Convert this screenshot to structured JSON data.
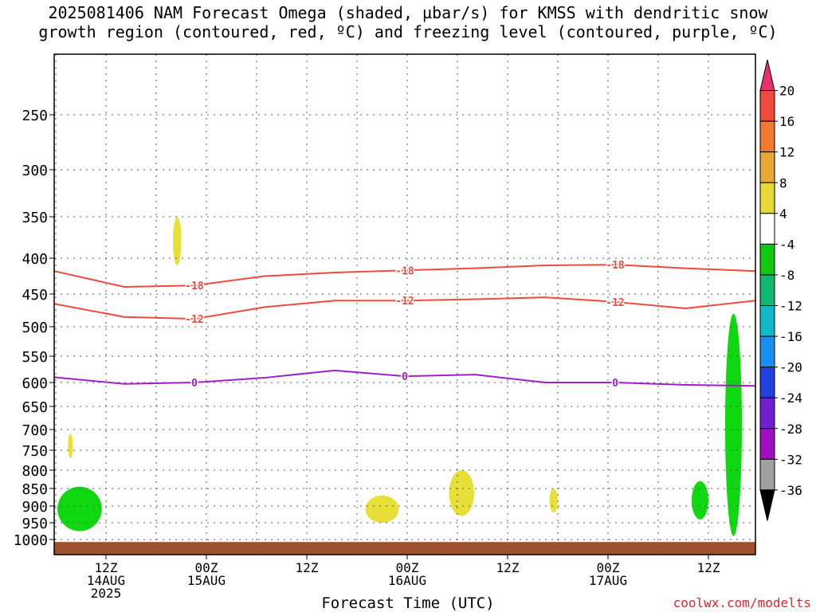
{
  "title_line1": "2025081406 NAM Forecast Omega (shaded, µbar/s) for KMSS with dendritic snow",
  "title_line2": "growth region (contoured, red, ºC) and freezing level (contoured, purple, ºC)",
  "credit": "coolwx.com/modelts",
  "chart_data": {
    "type": "time-pressure cross section",
    "xlabel": "Forecast Time (UTC)",
    "x_range_hours": [
      6,
      66
    ],
    "y_range_hPa": [
      1030,
      185
    ],
    "y_ticks": [
      250,
      300,
      350,
      400,
      450,
      500,
      550,
      600,
      650,
      700,
      750,
      800,
      850,
      900,
      950,
      1000
    ],
    "x_ticks": [
      {
        "hour": 12,
        "label1": "12Z",
        "label2": "14AUG",
        "label3": "2025"
      },
      {
        "hour": 24,
        "label1": "00Z",
        "label2": "15AUG",
        "label3": ""
      },
      {
        "hour": 36,
        "label1": "12Z",
        "label2": "",
        "label3": ""
      },
      {
        "hour": 48,
        "label1": "00Z",
        "label2": "16AUG",
        "label3": ""
      },
      {
        "hour": 60,
        "label1": "12Z",
        "label2": "",
        "label3": ""
      },
      {
        "hour": 72,
        "label1": "00Z",
        "label2": "17AUG",
        "label3": ""
      },
      {
        "hour": 84,
        "label1": "12Z",
        "label2": "",
        "label3": ""
      }
    ],
    "grid": true,
    "colorbar": {
      "label": "µbar/s",
      "levels": [
        "20",
        "16",
        "12",
        "8",
        "4",
        "-4",
        "-8",
        "-12",
        "-16",
        "-20",
        "-24",
        "-28",
        "-32",
        "-36"
      ],
      "colors": [
        "#e8306a",
        "#f04a3c",
        "#f07a30",
        "#e8a838",
        "#e8d838",
        "#ffffff",
        "#10c810",
        "#10b870",
        "#10b8c8",
        "#1890f0",
        "#2040e0",
        "#7020d0",
        "#a010c0",
        "#a0a0a0",
        "#000000"
      ]
    },
    "contours": [
      {
        "label": "-18",
        "color": "#f04a3c",
        "points": [
          [
            6,
            418
          ],
          [
            12,
            440
          ],
          [
            18,
            438
          ],
          [
            24,
            425
          ],
          [
            30,
            420
          ],
          [
            36,
            417
          ],
          [
            42,
            414
          ],
          [
            48,
            410
          ],
          [
            54,
            409
          ],
          [
            60,
            414
          ],
          [
            66,
            418
          ]
        ]
      },
      {
        "label": "-12",
        "color": "#f04a3c",
        "points": [
          [
            6,
            465
          ],
          [
            12,
            485
          ],
          [
            18,
            488
          ],
          [
            24,
            470
          ],
          [
            30,
            460
          ],
          [
            36,
            460
          ],
          [
            42,
            458
          ],
          [
            48,
            455
          ],
          [
            54,
            462
          ],
          [
            60,
            472
          ],
          [
            66,
            460
          ]
        ]
      },
      {
        "label": "0",
        "color": "#a020c8",
        "points": [
          [
            6,
            590
          ],
          [
            12,
            603
          ],
          [
            18,
            600
          ],
          [
            24,
            591
          ],
          [
            30,
            577
          ],
          [
            36,
            588
          ],
          [
            42,
            585
          ],
          [
            48,
            600
          ],
          [
            54,
            600
          ],
          [
            60,
            605
          ],
          [
            66,
            607
          ]
        ]
      }
    ],
    "omega_regions": [
      {
        "value_class": "-4 to -8",
        "color": "#10d810",
        "hours": [
          6.2,
          11.5
        ],
        "p_range": [
          845,
          975
        ]
      },
      {
        "value_class": "4 to 8",
        "color": "#e8e038",
        "hours": [
          20,
          21
        ],
        "p_range": [
          350,
          410
        ]
      },
      {
        "value_class": "4 to 8",
        "color": "#e8e038",
        "hours": [
          7.5,
          8
        ],
        "p_range": [
          710,
          770
        ]
      },
      {
        "value_class": "4 to 8",
        "color": "#e8e038",
        "hours": [
          43,
          47
        ],
        "p_range": [
          870,
          950
        ]
      },
      {
        "value_class": "4 to 8",
        "color": "#e8e038",
        "hours": [
          53,
          56
        ],
        "p_range": [
          800,
          930
        ]
      },
      {
        "value_class": "4 to 8",
        "color": "#e8e038",
        "hours": [
          65,
          66
        ],
        "p_range": [
          850,
          920
        ]
      },
      {
        "value_class": "-4 to -8",
        "color": "#10d810",
        "hours": [
          82,
          84
        ],
        "p_range": [
          830,
          940
        ]
      },
      {
        "value_class": "-4 to -8",
        "color": "#10d810",
        "hours": [
          86,
          88
        ],
        "p_range": [
          480,
          990
        ]
      }
    ],
    "terrain_top_hPa": 1005
  }
}
